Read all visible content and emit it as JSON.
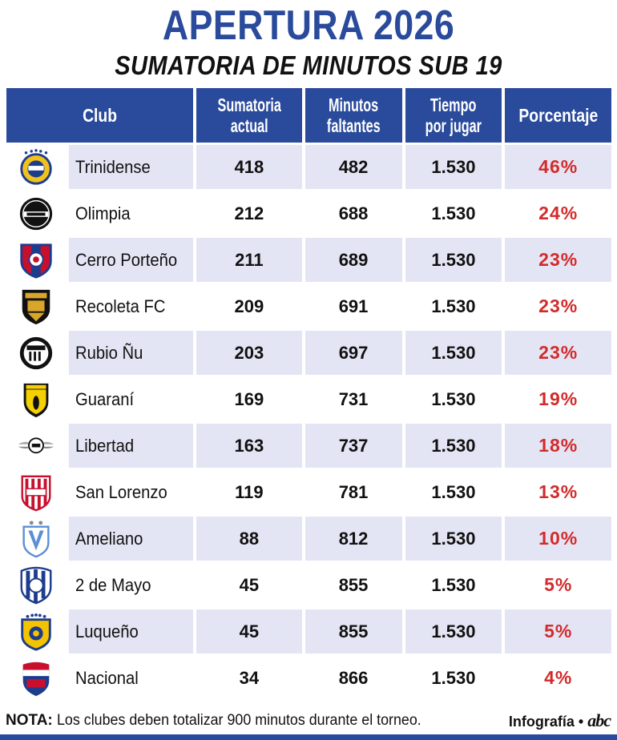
{
  "title": "APERTURA 2026",
  "subtitle": "SUMATORIA DE MINUTOS SUB 19",
  "colors": {
    "header_bg": "#2a4a9c",
    "row_tint": "#e4e5f4",
    "percent": "#d32b2b"
  },
  "table": {
    "headers": {
      "club": "Club",
      "current_1": "Sumatoria",
      "current_2": "actual",
      "missing_1": "Minutos",
      "missing_2": "faltantes",
      "time_1": "Tiempo",
      "time_2": "por jugar",
      "percent": "Porcentaje"
    },
    "rows": [
      {
        "club": "Trinidense",
        "logo": "trinidense-crest-icon",
        "current": "418",
        "missing": "482",
        "time": "1.530",
        "percent": "46%"
      },
      {
        "club": "Olimpia",
        "logo": "olimpia-crest-icon",
        "current": "212",
        "missing": "688",
        "time": "1.530",
        "percent": "24%"
      },
      {
        "club": "Cerro Porteño",
        "logo": "cerro-porteno-crest-icon",
        "current": "211",
        "missing": "689",
        "time": "1.530",
        "percent": "23%"
      },
      {
        "club": "Recoleta FC",
        "logo": "recoleta-crest-icon",
        "current": "209",
        "missing": "691",
        "time": "1.530",
        "percent": "23%"
      },
      {
        "club": "Rubio Ñu",
        "logo": "rubio-nu-crest-icon",
        "current": "203",
        "missing": "697",
        "time": "1.530",
        "percent": "23%"
      },
      {
        "club": "Guaraní",
        "logo": "guarani-crest-icon",
        "current": "169",
        "missing": "731",
        "time": "1.530",
        "percent": "19%"
      },
      {
        "club": "Libertad",
        "logo": "libertad-crest-icon",
        "current": "163",
        "missing": "737",
        "time": "1.530",
        "percent": "18%"
      },
      {
        "club": "San Lorenzo",
        "logo": "san-lorenzo-crest-icon",
        "current": "119",
        "missing": "781",
        "time": "1.530",
        "percent": "13%"
      },
      {
        "club": "Ameliano",
        "logo": "ameliano-crest-icon",
        "current": "88",
        "missing": "812",
        "time": "1.530",
        "percent": "10%"
      },
      {
        "club": "2 de Mayo",
        "logo": "2-de-mayo-crest-icon",
        "current": "45",
        "missing": "855",
        "time": "1.530",
        "percent": "5%"
      },
      {
        "club": "Luqueño",
        "logo": "luqueno-crest-icon",
        "current": "45",
        "missing": "855",
        "time": "1.530",
        "percent": "5%"
      },
      {
        "club": "Nacional",
        "logo": "nacional-crest-icon",
        "current": "34",
        "missing": "866",
        "time": "1.530",
        "percent": "4%"
      }
    ]
  },
  "footer": {
    "note_label": "NOTA:",
    "note_text": "Los clubes deben totalizar 900 minutos durante el torneo.",
    "credit": "Infografía",
    "separator": "•",
    "brand": "abc"
  }
}
